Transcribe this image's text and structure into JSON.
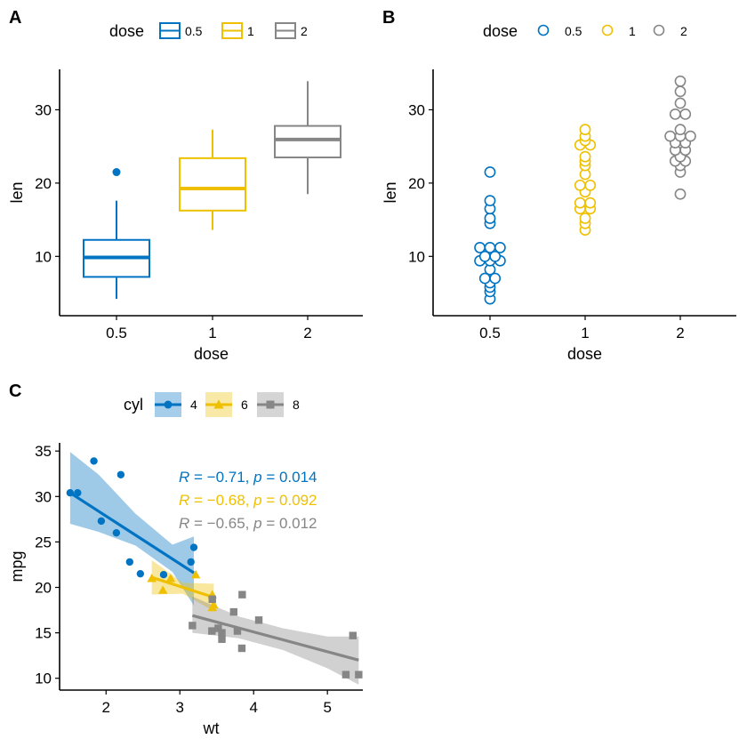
{
  "colors": {
    "0.5": "#0073C2",
    "1": "#EFC000",
    "2": "#868686",
    "4": "#0073C2",
    "6": "#EFC000",
    "8": "#868686",
    "axis": "#000000"
  },
  "chart_data": [
    {
      "panel": "A",
      "type": "box",
      "xlabel": "dose",
      "ylabel": "len",
      "ylim": [
        3,
        36
      ],
      "yticks": [
        10,
        20,
        30
      ],
      "categories": [
        "0.5",
        "1",
        "2"
      ],
      "legend": {
        "title": "dose",
        "position": "top",
        "entries": [
          "0.5",
          "1",
          "2"
        ]
      },
      "boxes": [
        {
          "group": "0.5",
          "min": 4.2,
          "q1": 7.2,
          "median": 9.85,
          "q3": 12.25,
          "max": 17.6,
          "outliers": [
            21.5
          ]
        },
        {
          "group": "1",
          "min": 13.6,
          "q1": 16.25,
          "median": 19.25,
          "q3": 23.4,
          "max": 27.3,
          "outliers": []
        },
        {
          "group": "2",
          "min": 18.5,
          "q1": 23.5,
          "median": 25.95,
          "q3": 27.8,
          "max": 33.9,
          "outliers": []
        }
      ]
    },
    {
      "panel": "B",
      "type": "dotplot",
      "xlabel": "dose",
      "ylabel": "len",
      "ylim": [
        3,
        36
      ],
      "yticks": [
        10,
        20,
        30
      ],
      "categories": [
        "0.5",
        "1",
        "2"
      ],
      "legend": {
        "title": "dose",
        "position": "top",
        "entries": [
          "0.5",
          "1",
          "2"
        ]
      },
      "groups": [
        {
          "group": "0.5",
          "values": [
            4.2,
            5.2,
            5.8,
            6.4,
            7.0,
            7.3,
            8.2,
            9.4,
            9.7,
            9.7,
            10.0,
            10.0,
            11.2,
            11.2,
            11.5,
            14.5,
            15.2,
            16.5,
            17.6,
            21.5
          ]
        },
        {
          "group": "1",
          "values": [
            13.6,
            14.5,
            15.2,
            16.5,
            16.5,
            17.3,
            17.6,
            18.8,
            19.7,
            20.0,
            21.2,
            22.4,
            23.0,
            23.6,
            25.2,
            25.5,
            25.8,
            26.4,
            27.3
          ]
        },
        {
          "group": "2",
          "values": [
            18.5,
            21.5,
            22.4,
            23.0,
            23.3,
            23.6,
            24.5,
            24.8,
            25.5,
            25.5,
            26.4,
            26.4,
            26.7,
            27.3,
            29.4,
            29.5,
            30.9,
            32.5,
            33.9
          ]
        }
      ]
    },
    {
      "panel": "C",
      "type": "scatter",
      "xlabel": "wt",
      "ylabel": "mpg",
      "xlim": [
        1.37,
        5.48
      ],
      "ylim": [
        8.7,
        35.9
      ],
      "xticks": [
        2,
        3,
        4,
        5
      ],
      "yticks": [
        10,
        15,
        20,
        25,
        30,
        35
      ],
      "legend": {
        "title": "cyl",
        "position": "top",
        "entries": [
          "4",
          "6",
          "8"
        ]
      },
      "series": [
        {
          "name": "4",
          "marker": "circle",
          "points": [
            [
              2.32,
              22.8
            ],
            [
              3.19,
              24.4
            ],
            [
              3.15,
              22.8
            ],
            [
              2.2,
              32.4
            ],
            [
              1.615,
              30.4
            ],
            [
              1.835,
              33.9
            ],
            [
              2.465,
              21.5
            ],
            [
              1.935,
              27.3
            ],
            [
              2.14,
              26.0
            ],
            [
              1.513,
              30.4
            ],
            [
              2.78,
              21.4
            ]
          ],
          "fit": {
            "x": [
              1.513,
              3.19
            ],
            "y": [
              30.4,
              21.6
            ]
          },
          "band": {
            "x": [
              1.513,
              1.9,
              2.4,
              2.9,
              3.19
            ],
            "lower": [
              27.0,
              26.1,
              24.6,
              21.7,
              18.0
            ],
            "upper": [
              34.9,
              32.4,
              28.1,
              24.7,
              25.6
            ]
          },
          "stat": {
            "R": "−0.71",
            "p": "0.014"
          }
        },
        {
          "name": "6",
          "marker": "triangle",
          "points": [
            [
              2.62,
              21.0
            ],
            [
              2.875,
              21.0
            ],
            [
              3.215,
              21.4
            ],
            [
              3.46,
              18.1
            ],
            [
              3.44,
              19.2
            ],
            [
              3.44,
              17.8
            ],
            [
              2.77,
              19.7
            ]
          ],
          "fit": {
            "x": [
              2.62,
              3.46
            ],
            "y": [
              21.1,
              18.9
            ]
          },
          "band": {
            "x": [
              2.62,
              3.04,
              3.46
            ],
            "lower": [
              19.2,
              19.3,
              17.4
            ],
            "upper": [
              23.0,
              20.5,
              20.4
            ]
          },
          "stat": {
            "R": "−0.68",
            "p": "0.092"
          }
        },
        {
          "name": "8",
          "marker": "square",
          "points": [
            [
              3.44,
              18.7
            ],
            [
              3.57,
              14.3
            ],
            [
              4.07,
              16.4
            ],
            [
              3.73,
              17.3
            ],
            [
              3.78,
              15.2
            ],
            [
              5.25,
              10.4
            ],
            [
              5.424,
              10.4
            ],
            [
              5.345,
              14.7
            ],
            [
              3.52,
              15.5
            ],
            [
              3.435,
              15.2
            ],
            [
              3.84,
              13.3
            ],
            [
              3.845,
              19.2
            ],
            [
              3.17,
              15.8
            ],
            [
              3.57,
              15.0
            ]
          ],
          "fit": {
            "x": [
              3.17,
              5.424
            ],
            "y": [
              16.9,
              12.0
            ]
          },
          "band": {
            "x": [
              3.17,
              3.8,
              4.4,
              5.0,
              5.424
            ],
            "lower": [
              15.0,
              14.4,
              13.1,
              11.1,
              9.3
            ],
            "upper": [
              19.0,
              16.8,
              15.5,
              14.6,
              14.6
            ]
          },
          "stat": {
            "R": "−0.65",
            "p": "0.012"
          }
        }
      ]
    }
  ],
  "panel_labels": [
    "A",
    "B",
    "C"
  ],
  "stat_labels": {
    "R": "R",
    "p": "p",
    "equals": " = ",
    "sep": ", "
  }
}
